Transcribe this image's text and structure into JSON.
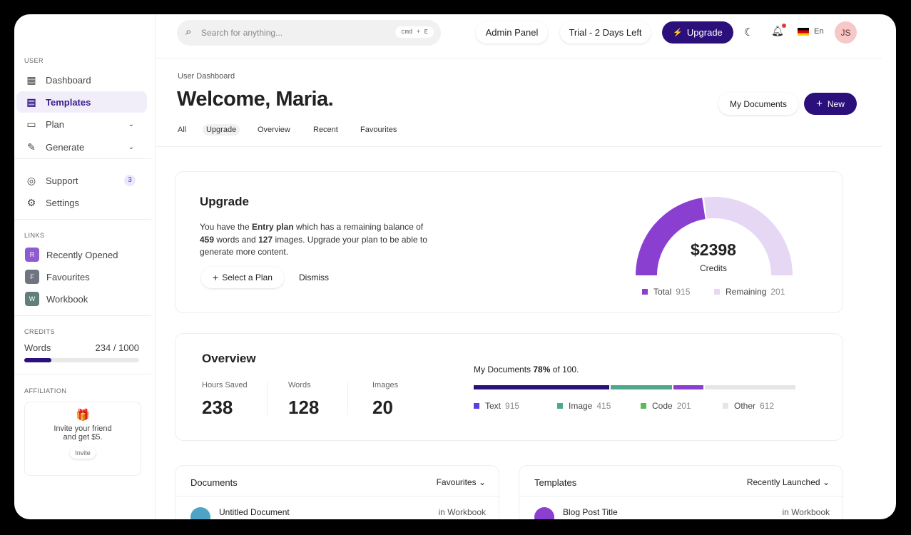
{
  "sidebar": {
    "user_label": "USER",
    "items": [
      {
        "label": "Dashboard"
      },
      {
        "label": "Templates"
      },
      {
        "label": "Plan"
      },
      {
        "label": "Generate"
      },
      {
        "label": "Support",
        "badge": "3"
      },
      {
        "label": "Settings"
      }
    ],
    "links_label": "LINKS",
    "links": [
      {
        "letter": "R",
        "label": "Recently Opened",
        "color": "#8e5bd0"
      },
      {
        "letter": "F",
        "label": "Favourites",
        "color": "#6f7580"
      },
      {
        "letter": "W",
        "label": "Workbook",
        "color": "#5f7f78"
      }
    ],
    "credits_label": "CREDITS",
    "credits": {
      "label": "Words",
      "value": "234 / 1000",
      "fraction": 0.234
    },
    "affiliation_label": "AFFILIATION",
    "affiliation": {
      "text1": "Invite your friend",
      "text2": "and get $5.",
      "button": "Invite"
    }
  },
  "header": {
    "search_placeholder": "Search for anything...",
    "shortcut": "cmd + E",
    "admin": "Admin Panel",
    "trial": "Trial - 2 Days Left",
    "upgrade": "Upgrade",
    "lang": "En",
    "avatar": "JS"
  },
  "page": {
    "breadcrumb": "User Dashboard",
    "title": "Welcome, Maria.",
    "my_docs": "My Documents",
    "new": "New",
    "tabs": [
      "All",
      "Upgrade",
      "Overview",
      "Recent",
      "Favourites"
    ],
    "active_tab": "Upgrade"
  },
  "upgrade": {
    "title": "Upgrade",
    "t1": "You have the ",
    "plan": "Entry plan",
    "t2": " which has a remaining balance of",
    "words": "459",
    "t3": " words and ",
    "images": "127",
    "t4": " images. Upgrade your plan to be able to",
    "t5": "generate more content.",
    "select": "Select a Plan",
    "dismiss": "Dismiss",
    "gauge": {
      "amount": "$2398",
      "label": "Credits",
      "total_label": "Total",
      "total": "915",
      "remaining_label": "Remaining",
      "remaining": "201",
      "colors": {
        "total": "#8a3fd1",
        "remaining": "#e6d8f5"
      }
    }
  },
  "overview": {
    "title": "Overview",
    "stats": [
      {
        "label": "Hours Saved",
        "value": "238"
      },
      {
        "label": "Words",
        "value": "128"
      },
      {
        "label": "Images",
        "value": "20"
      }
    ],
    "docs_pre": "My Documents ",
    "docs_pct": "78%",
    "docs_post": " of 100.",
    "segments": [
      {
        "label": "Text",
        "value": "915",
        "color": "#2b0f7a",
        "legend": "#5b3fe0"
      },
      {
        "label": "Image",
        "value": "415",
        "color": "#4fa88a",
        "legend": "#4fa88a"
      },
      {
        "label": "Code",
        "value": "201",
        "color": "#8a3fd1",
        "legend": "#5cb85c"
      },
      {
        "label": "Other",
        "value": "612",
        "color": "#e6e6e6",
        "legend": "#e6e6e6"
      }
    ]
  },
  "documents": {
    "title": "Documents",
    "filter": "Favourites",
    "row": {
      "name": "Untitled Document",
      "loc": "in Workbook"
    }
  },
  "templates": {
    "title": "Templates",
    "filter": "Recently Launched",
    "row": {
      "name": "Blog Post Title",
      "loc": "in Workbook"
    }
  }
}
